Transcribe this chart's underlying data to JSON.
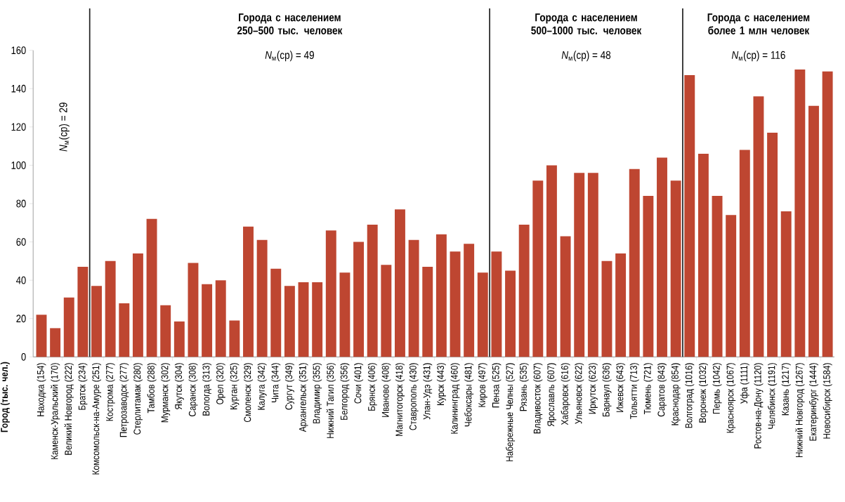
{
  "chart_data": {
    "type": "bar",
    "categories": [
      "Находка (154)",
      "Каменск-Уральский (170)",
      "Великий Новгород (222)",
      "Братск (234)",
      "Комсомольск-на-Амуре (251)",
      "Кострома (277)",
      "Петрозаводск (277)",
      "Стерлитамак (280)",
      "Тамбов (288)",
      "Мурманск (302)",
      "Якутск (304)",
      "Саранск (308)",
      "Вологда (313)",
      "Орел (320)",
      "Курган (325)",
      "Смоленск (329)",
      "Калуга (342)",
      "Чита (344)",
      "Сургут (349)",
      "Архангельск (351)",
      "Владимир (355)",
      "Нижний Тагил (356)",
      "Белгород (356)",
      "Сочи (401)",
      "Брянск (406)",
      "Иваново (408)",
      "Магнитогорск (418)",
      "Ставрополь (430)",
      "Улан-Удэ (431)",
      "Курск (443)",
      "Калининград (460)",
      "Чебоксары (481)",
      "Киров (497)",
      "Пенза (525)",
      "Набережные Челны (527)",
      "Рязань (535)",
      "Владивосток (607)",
      "Ярославль (607)",
      "Хабаровск (616)",
      "Ульяновск (622)",
      "Иркутск (623)",
      "Барнаул (636)",
      "Ижевск (643)",
      "Тольятти (713)",
      "Тюмень (721)",
      "Саратов (843)",
      "Краснодар (854)",
      "Волгоград (1016)",
      "Воронеж (1032)",
      "Пермь (1042)",
      "Красноярск (1067)",
      "Уфа (1111)",
      "Ростов-на-Дону (1120)",
      "Челябинск (1191)",
      "Казань (1217)",
      "Нижний Новгород (1267)",
      "Екатеринбург (1444)",
      "Новосибирск (1584)"
    ],
    "values": [
      22,
      15,
      31,
      47,
      37,
      50,
      28,
      54,
      72,
      27,
      18.5,
      49,
      38,
      40,
      19,
      68,
      61,
      46,
      37,
      39,
      39,
      66,
      44,
      60,
      69,
      48,
      77,
      61,
      47,
      64,
      55,
      59,
      44,
      55,
      45,
      69,
      92,
      100,
      63,
      96,
      96,
      50,
      54,
      98,
      84,
      104,
      92,
      147,
      106,
      84,
      74,
      108,
      136,
      117,
      76,
      150,
      131,
      149
    ],
    "color": "#be4631",
    "ylim": [
      0,
      160
    ],
    "yticks": [
      0,
      20,
      40,
      60,
      80,
      100,
      120,
      140,
      160
    ],
    "annotations": [
      "Город (тыс. чел.)",
      "*N*$_{м}$(ср) = 29",
      "Города с населением 250–500 тыс. человек",
      "*N*$_{м}$(ср) = 49",
      "Города с населением 500–1000 тыс. человек",
      "*N*$_{м}$(ср) = 48",
      "Города с населением более 1 млн человек",
      "*N*$_{м}$(ср) = 116"
    ]
  }
}
